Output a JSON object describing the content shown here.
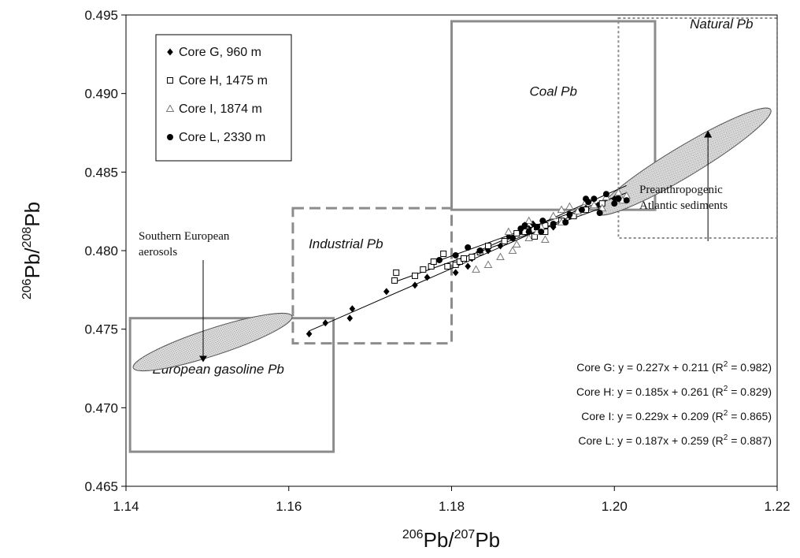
{
  "chart_data": {
    "type": "scatter",
    "xlabel": {
      "base": "Pb",
      "sup": "206",
      "den_base": "Pb",
      "den_sup": "207"
    },
    "ylabel": {
      "base": "Pb",
      "sup": "206",
      "den_base": "Pb",
      "den_sup": "208"
    },
    "xlim": [
      1.14,
      1.22
    ],
    "ylim": [
      0.465,
      0.495
    ],
    "xticks": [
      "1.14",
      "1.16",
      "1.18",
      "1.20",
      "1.22"
    ],
    "yticks": [
      "0.465",
      "0.470",
      "0.475",
      "0.480",
      "0.485",
      "0.490",
      "0.495"
    ],
    "legend_position": "top-left",
    "series": [
      {
        "name": "Core G, 960 m",
        "marker": "diamond-filled",
        "points": [
          [
            1.1625,
            0.4747
          ],
          [
            1.1645,
            0.4754
          ],
          [
            1.1675,
            0.4757
          ],
          [
            1.1678,
            0.4763
          ],
          [
            1.172,
            0.4774
          ],
          [
            1.173,
            0.4781
          ],
          [
            1.1755,
            0.4778
          ],
          [
            1.177,
            0.4783
          ],
          [
            1.1805,
            0.4786
          ],
          [
            1.182,
            0.479
          ],
          [
            1.1825,
            0.4795
          ],
          [
            1.1845,
            0.48
          ],
          [
            1.186,
            0.4803
          ],
          [
            1.1865,
            0.4806
          ],
          [
            1.187,
            0.4809
          ],
          [
            1.1885,
            0.4812
          ],
          [
            1.1895,
            0.4814
          ],
          [
            1.19,
            0.4817
          ],
          [
            1.1925,
            0.4815
          ],
          [
            1.1935,
            0.4819
          ],
          [
            1.1945,
            0.4822
          ],
          [
            1.1955,
            0.4825
          ],
          [
            1.1965,
            0.4827
          ],
          [
            1.198,
            0.4829
          ],
          [
            1.2,
            0.4833
          ]
        ]
      },
      {
        "name": "Core H, 1475 m",
        "marker": "square-open",
        "points": [
          [
            1.173,
            0.4781
          ],
          [
            1.1732,
            0.4786
          ],
          [
            1.1755,
            0.4784
          ],
          [
            1.1765,
            0.4788
          ],
          [
            1.1775,
            0.479
          ],
          [
            1.1778,
            0.4793
          ],
          [
            1.1795,
            0.479
          ],
          [
            1.1805,
            0.4791
          ],
          [
            1.181,
            0.4793
          ],
          [
            1.179,
            0.4798
          ],
          [
            1.1815,
            0.4795
          ],
          [
            1.1825,
            0.4796
          ],
          [
            1.1835,
            0.4799
          ],
          [
            1.1845,
            0.4803
          ],
          [
            1.1865,
            0.4806
          ],
          [
            1.188,
            0.4811
          ],
          [
            1.189,
            0.4812
          ],
          [
            1.1905,
            0.4815
          ],
          [
            1.1915,
            0.4812
          ],
          [
            1.1902,
            0.4809
          ],
          [
            1.1915,
            0.4816
          ],
          [
            1.1935,
            0.4819
          ],
          [
            1.195,
            0.4822
          ],
          [
            1.1965,
            0.4826
          ],
          [
            1.1985,
            0.483
          ]
        ]
      },
      {
        "name": "Core I, 1874 m",
        "marker": "triangle-open",
        "points": [
          [
            1.183,
            0.4788
          ],
          [
            1.1845,
            0.4791
          ],
          [
            1.186,
            0.4796
          ],
          [
            1.1875,
            0.48
          ],
          [
            1.188,
            0.4804
          ],
          [
            1.1895,
            0.4808
          ],
          [
            1.1905,
            0.4812
          ],
          [
            1.1915,
            0.4807
          ],
          [
            1.189,
            0.4816
          ],
          [
            1.1895,
            0.4819
          ],
          [
            1.1925,
            0.4822
          ],
          [
            1.1935,
            0.4826
          ],
          [
            1.1945,
            0.4828
          ],
          [
            1.1965,
            0.4831
          ],
          [
            1.1975,
            0.4829
          ],
          [
            1.199,
            0.4834
          ],
          [
            1.2005,
            0.4837
          ],
          [
            1.2015,
            0.4835
          ],
          [
            1.1955,
            0.4825
          ],
          [
            1.1985,
            0.4827
          ],
          [
            1.201,
            0.4832
          ],
          [
            1.1935,
            0.4818
          ],
          [
            1.191,
            0.4815
          ],
          [
            1.187,
            0.4812
          ]
        ]
      },
      {
        "name": "Core L, 2330 m",
        "marker": "circle-filled",
        "points": [
          [
            1.1785,
            0.4794
          ],
          [
            1.1805,
            0.4797
          ],
          [
            1.182,
            0.4802
          ],
          [
            1.1835,
            0.48
          ],
          [
            1.1875,
            0.4808
          ],
          [
            1.1885,
            0.4814
          ],
          [
            1.1895,
            0.4812
          ],
          [
            1.1905,
            0.4815
          ],
          [
            1.1912,
            0.4819
          ],
          [
            1.1925,
            0.4817
          ],
          [
            1.194,
            0.4818
          ],
          [
            1.1945,
            0.4823
          ],
          [
            1.196,
            0.4826
          ],
          [
            1.1968,
            0.4831
          ],
          [
            1.1975,
            0.4833
          ],
          [
            1.1982,
            0.4824
          ],
          [
            1.199,
            0.4836
          ],
          [
            1.2,
            0.483
          ],
          [
            1.2005,
            0.4833
          ],
          [
            1.2015,
            0.4832
          ],
          [
            1.1965,
            0.4833
          ],
          [
            1.191,
            0.4812
          ],
          [
            1.189,
            0.4816
          ]
        ]
      }
    ],
    "fit_lines": [
      {
        "series": "Core G",
        "slope": 0.227,
        "intercept": 0.211,
        "x": [
          1.1625,
          1.2005
        ]
      },
      {
        "series": "Core H",
        "slope": 0.185,
        "intercept": 0.261,
        "x": [
          1.173,
          1.1985
        ]
      },
      {
        "series": "Core I",
        "slope": 0.229,
        "intercept": 0.209,
        "x": [
          1.183,
          1.2015
        ]
      },
      {
        "series": "Core L",
        "slope": 0.187,
        "intercept": 0.259,
        "x": [
          1.1785,
          1.2015
        ]
      }
    ],
    "equations": [
      {
        "text": "Core G: y = 0.227x + 0.211 (R",
        "sup": "2",
        "tail": " = 0.982)"
      },
      {
        "text": "Core H: y = 0.185x + 0.261 (R",
        "sup": "2",
        "tail": " = 0.829)"
      },
      {
        "text": "Core I: y = 0.229x + 0.209 (R",
        "sup": "2",
        "tail": " = 0.865)"
      },
      {
        "text": "Core L: y = 0.187x + 0.259 (R",
        "sup": "2",
        "tail": " = 0.887)"
      }
    ],
    "regions": [
      {
        "label": "European gasoline Pb",
        "x": [
          1.1405,
          1.1655
        ],
        "y": [
          0.4672,
          0.4757
        ],
        "style": "solid"
      },
      {
        "label": "Industrial Pb",
        "x": [
          1.1605,
          1.18
        ],
        "y": [
          0.4741,
          0.4827
        ],
        "style": "dashed"
      },
      {
        "label": "Coal Pb",
        "x": [
          1.18,
          1.205
        ],
        "y": [
          0.4826,
          0.4946
        ],
        "style": "solid"
      },
      {
        "label": "Natural Pb",
        "x": [
          1.2005,
          1.22
        ],
        "y": [
          0.4808,
          0.4948
        ],
        "style": "dotted"
      }
    ],
    "ellipses": [
      {
        "label_lines": [
          "Southern European",
          "aerosols"
        ],
        "center": [
          1.1512,
          0.4729
        ],
        "marker_at": [
          1.1495,
          0.473
        ]
      },
      {
        "label_lines": [
          "Preanthropogenic",
          "Atlantic sediments"
        ],
        "center": [
          1.2098,
          0.487
        ],
        "marker_at": [
          1.2115,
          0.4874
        ]
      }
    ]
  }
}
